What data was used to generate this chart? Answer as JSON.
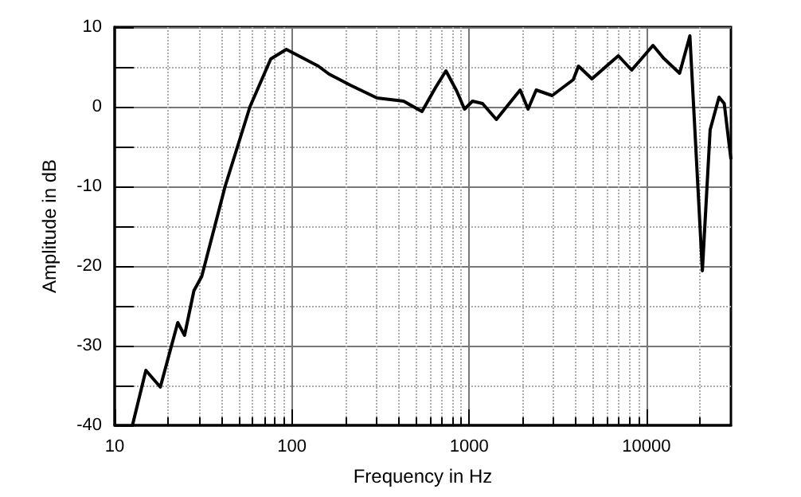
{
  "chart_data": {
    "type": "line",
    "xlabel": "Frequency in Hz",
    "ylabel": "Amplitude in dB",
    "log": "x",
    "grid": true,
    "marker": "none",
    "line_style": "solid",
    "xlim": [
      10,
      30000
    ],
    "ylim": [
      -40,
      10
    ],
    "xticks": [
      10,
      100,
      1000,
      10000,
      {
        "value": 20,
        "label": null
      },
      {
        "value": 30,
        "label": null
      },
      {
        "value": 40,
        "label": null
      },
      {
        "value": 50,
        "label": null
      },
      {
        "value": 60,
        "label": null
      },
      {
        "value": 70,
        "label": null
      },
      {
        "value": 80,
        "label": null
      },
      {
        "value": 90,
        "label": null
      },
      {
        "value": 200,
        "label": null
      },
      {
        "value": 300,
        "label": null
      },
      {
        "value": 400,
        "label": null
      },
      {
        "value": 500,
        "label": null
      },
      {
        "value": 600,
        "label": null
      },
      {
        "value": 700,
        "label": null
      },
      {
        "value": 800,
        "label": null
      },
      {
        "value": 900,
        "label": null
      },
      {
        "value": 2000,
        "label": null
      },
      {
        "value": 3000,
        "label": null
      },
      {
        "value": 4000,
        "label": null
      },
      {
        "value": 5000,
        "label": null
      },
      {
        "value": 6000,
        "label": null
      },
      {
        "value": 7000,
        "label": null
      },
      {
        "value": 8000,
        "label": null
      },
      {
        "value": 9000,
        "label": null
      },
      {
        "value": 20000,
        "label": null
      }
    ],
    "yticks": [
      -40,
      -30,
      -20,
      -10,
      0,
      10,
      {
        "value": -35,
        "label": null
      },
      {
        "value": -25,
        "label": null
      },
      {
        "value": -15,
        "label": null
      },
      {
        "value": -5,
        "label": null
      },
      {
        "value": 5,
        "label": null
      }
    ],
    "series": [
      {
        "color": "#000000",
        "x": [
          12.6,
          15,
          18.1,
          22.7,
          24.8,
          28,
          31,
          42,
          58,
          76,
          93,
          141,
          162,
          214,
          302,
          427,
          542,
          650,
          740,
          850,
          942,
          1045,
          1190,
          1425,
          1940,
          2150,
          2390,
          2940,
          3870,
          4140,
          4930,
          6950,
          8260,
          10900,
          12500,
          15400,
          17600,
          20700,
          22900,
          25700,
          27500,
          30000
        ],
        "values": [
          -40,
          -33.1,
          -35.2,
          -27.1,
          -28.7,
          -23.1,
          -21.3,
          -10,
          0,
          6,
          7.2,
          5.1,
          4.1,
          2.7,
          1.1,
          0.7,
          -0.6,
          2.5,
          4.5,
          2,
          -0.3,
          0.7,
          0.4,
          -1.6,
          2.1,
          -0.3,
          2.1,
          1.4,
          3.4,
          5.1,
          3.5,
          6.4,
          4.6,
          7.7,
          6.1,
          4.2,
          8.9,
          -20.6,
          -2.9,
          1.2,
          0.4,
          -6.6
        ]
      }
    ]
  }
}
